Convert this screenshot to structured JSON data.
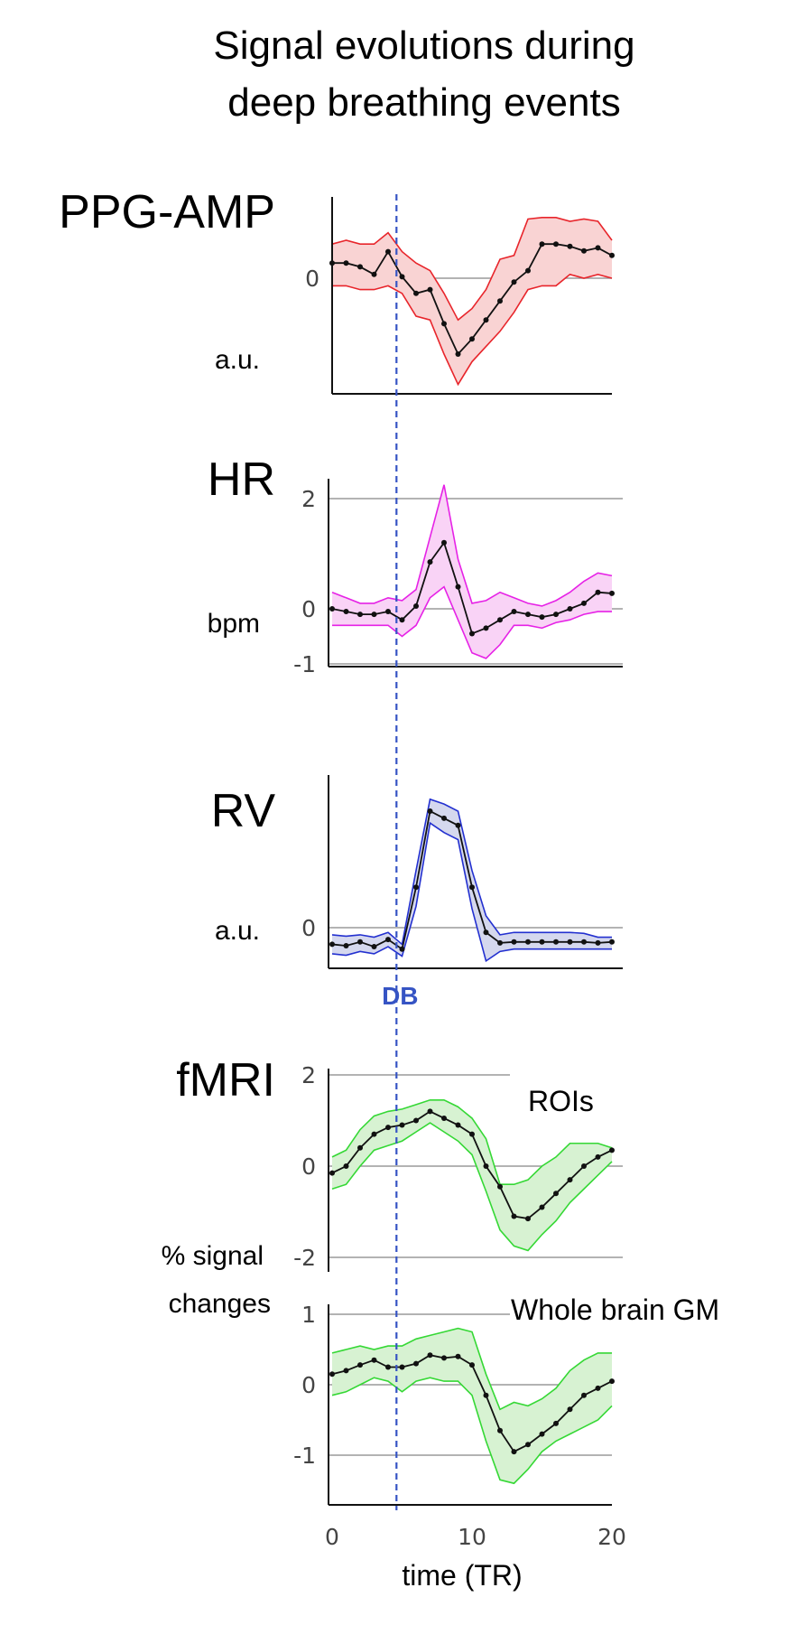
{
  "title_line1": "Signal evolutions during",
  "title_line2": "deep breathing events",
  "x_axis": {
    "label": "time (TR)",
    "ticks": [
      "0",
      "10",
      "20"
    ],
    "range": [
      0,
      20
    ]
  },
  "event_marker": {
    "label": "DB",
    "x": 4.6,
    "color": "#3654c4"
  },
  "chart_data": [
    {
      "type": "line",
      "panel": "PPG-AMP",
      "label": "PPG-AMP",
      "unit": "a.u.",
      "color": "#e8252b",
      "fill": "#f9d3d3",
      "ylim": [
        -1.6,
        1.0
      ],
      "yticks": [
        0
      ],
      "ytick_labels": [
        "0"
      ],
      "x": [
        0,
        1,
        2,
        3,
        4,
        5,
        6,
        7,
        8,
        9,
        10,
        11,
        12,
        13,
        14,
        15,
        16,
        17,
        18,
        19,
        20
      ],
      "values": [
        0.2,
        0.2,
        0.15,
        0.05,
        0.35,
        0.02,
        -0.2,
        -0.15,
        -0.6,
        -1.0,
        -0.8,
        -0.55,
        -0.3,
        -0.05,
        0.1,
        0.45,
        0.45,
        0.42,
        0.36,
        0.4,
        0.3
      ],
      "upper": [
        0.45,
        0.5,
        0.45,
        0.45,
        0.6,
        0.35,
        0.2,
        0.1,
        -0.2,
        -0.55,
        -0.4,
        -0.15,
        0.25,
        0.3,
        0.78,
        0.8,
        0.8,
        0.75,
        0.78,
        0.75,
        0.5
      ],
      "lower": [
        -0.1,
        -0.1,
        -0.15,
        -0.15,
        -0.1,
        -0.2,
        -0.5,
        -0.55,
        -1.0,
        -1.4,
        -1.1,
        -0.9,
        -0.7,
        -0.45,
        -0.15,
        -0.1,
        -0.1,
        0.05,
        0.0,
        0.05,
        0.0
      ]
    },
    {
      "type": "line",
      "panel": "HR",
      "label": "HR",
      "unit": "bpm",
      "color": "#e622e6",
      "fill": "#f9d3f6",
      "ylim": [
        -1.1,
        2.3
      ],
      "yticks": [
        2,
        0,
        -1
      ],
      "ytick_labels": [
        "2",
        "0",
        "-1"
      ],
      "x": [
        0,
        1,
        2,
        3,
        4,
        5,
        6,
        7,
        8,
        9,
        10,
        11,
        12,
        13,
        14,
        15,
        16,
        17,
        18,
        19,
        20
      ],
      "values": [
        0.0,
        -0.05,
        -0.1,
        -0.1,
        -0.05,
        -0.2,
        0.05,
        0.85,
        1.2,
        0.4,
        -0.45,
        -0.35,
        -0.2,
        -0.05,
        -0.1,
        -0.15,
        -0.1,
        0.0,
        0.1,
        0.3,
        0.28
      ],
      "upper": [
        0.3,
        0.2,
        0.1,
        0.1,
        0.2,
        0.15,
        0.35,
        1.3,
        2.25,
        0.9,
        0.1,
        0.15,
        0.3,
        0.2,
        0.1,
        0.05,
        0.15,
        0.3,
        0.5,
        0.65,
        0.6
      ],
      "lower": [
        -0.3,
        -0.3,
        -0.3,
        -0.3,
        -0.3,
        -0.5,
        -0.3,
        0.2,
        0.4,
        -0.2,
        -0.8,
        -0.9,
        -0.65,
        -0.3,
        -0.3,
        -0.35,
        -0.25,
        -0.2,
        -0.1,
        -0.05,
        -0.05
      ]
    },
    {
      "type": "line",
      "panel": "RV",
      "label": "RV",
      "unit": "a.u.",
      "color": "#2330d0",
      "fill": "#d5d8ee",
      "ylim": [
        -0.8,
        3.2
      ],
      "yticks": [
        0
      ],
      "ytick_labels": [
        "0"
      ],
      "x": [
        0,
        1,
        2,
        3,
        4,
        5,
        6,
        7,
        8,
        9,
        10,
        11,
        12,
        13,
        14,
        15,
        16,
        17,
        18,
        19,
        20
      ],
      "values": [
        -0.35,
        -0.38,
        -0.3,
        -0.4,
        -0.25,
        -0.45,
        0.85,
        2.45,
        2.3,
        2.15,
        0.85,
        -0.1,
        -0.32,
        -0.3,
        -0.3,
        -0.3,
        -0.3,
        -0.3,
        -0.3,
        -0.32,
        -0.3
      ],
      "upper": [
        -0.15,
        -0.18,
        -0.15,
        -0.2,
        -0.1,
        -0.35,
        1.2,
        2.7,
        2.6,
        2.45,
        1.2,
        0.25,
        -0.15,
        -0.1,
        -0.1,
        -0.1,
        -0.1,
        -0.1,
        -0.12,
        -0.2,
        -0.2
      ],
      "lower": [
        -0.55,
        -0.58,
        -0.5,
        -0.55,
        -0.4,
        -0.6,
        0.45,
        2.2,
        2.0,
        1.85,
        0.4,
        -0.7,
        -0.5,
        -0.45,
        -0.45,
        -0.45,
        -0.45,
        -0.45,
        -0.45,
        -0.45,
        -0.45
      ]
    },
    {
      "type": "line",
      "panel": "fMRI",
      "label": "fMRI",
      "annotation": "ROIs",
      "unit_line1": "% signal",
      "unit_line2": "changes",
      "color": "#35d835",
      "fill": "#d7f2d2",
      "ylim": [
        -2.2,
        2.2
      ],
      "yticks": [
        2,
        0,
        -2
      ],
      "ytick_labels": [
        "2",
        "0",
        "-2"
      ],
      "x": [
        0,
        1,
        2,
        3,
        4,
        5,
        6,
        7,
        8,
        9,
        10,
        11,
        12,
        13,
        14,
        15,
        16,
        17,
        18,
        19,
        20
      ],
      "values": [
        -0.15,
        0.0,
        0.4,
        0.7,
        0.85,
        0.9,
        1.0,
        1.2,
        1.05,
        0.9,
        0.7,
        0.0,
        -0.45,
        -1.1,
        -1.15,
        -0.9,
        -0.6,
        -0.3,
        0.0,
        0.2,
        0.35
      ],
      "upper": [
        0.2,
        0.35,
        0.8,
        1.1,
        1.2,
        1.25,
        1.35,
        1.45,
        1.45,
        1.3,
        1.05,
        0.6,
        -0.4,
        -0.4,
        -0.3,
        0.0,
        0.2,
        0.5,
        0.5,
        0.5,
        0.4
      ],
      "lower": [
        -0.5,
        -0.4,
        0.0,
        0.35,
        0.45,
        0.55,
        0.75,
        0.95,
        0.75,
        0.55,
        0.25,
        -0.55,
        -1.4,
        -1.75,
        -1.85,
        -1.5,
        -1.2,
        -0.8,
        -0.5,
        -0.2,
        0.1
      ]
    },
    {
      "type": "line",
      "panel": "fMRI",
      "label": "",
      "annotation": "Whole brain GM",
      "color": "#35d835",
      "fill": "#d7f2d2",
      "ylim": [
        -1.7,
        1.1
      ],
      "yticks": [
        1,
        0,
        -1
      ],
      "ytick_labels": [
        "1",
        "0",
        "-1"
      ],
      "x": [
        0,
        1,
        2,
        3,
        4,
        5,
        6,
        7,
        8,
        9,
        10,
        11,
        12,
        13,
        14,
        15,
        16,
        17,
        18,
        19,
        20
      ],
      "values": [
        0.15,
        0.2,
        0.28,
        0.35,
        0.25,
        0.25,
        0.3,
        0.42,
        0.38,
        0.4,
        0.28,
        -0.15,
        -0.65,
        -0.95,
        -0.85,
        -0.7,
        -0.55,
        -0.35,
        -0.15,
        -0.05,
        0.05
      ],
      "upper": [
        0.45,
        0.5,
        0.55,
        0.5,
        0.55,
        0.55,
        0.65,
        0.7,
        0.75,
        0.8,
        0.75,
        0.15,
        -0.35,
        -0.25,
        -0.3,
        -0.2,
        -0.05,
        0.2,
        0.35,
        0.45,
        0.45
      ],
      "lower": [
        -0.15,
        -0.1,
        0.0,
        0.1,
        0.05,
        -0.1,
        0.05,
        0.1,
        0.05,
        0.05,
        -0.15,
        -0.8,
        -1.35,
        -1.4,
        -1.2,
        -0.95,
        -0.8,
        -0.7,
        -0.6,
        -0.5,
        -0.3
      ]
    }
  ]
}
